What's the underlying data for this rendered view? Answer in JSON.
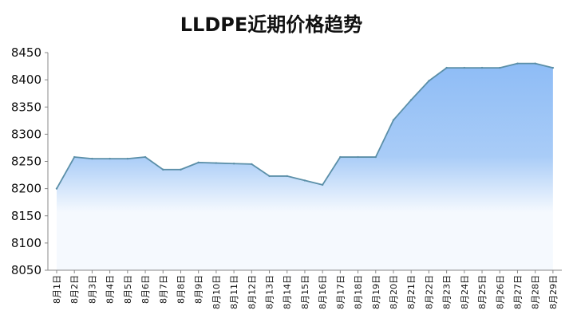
{
  "chart_data": {
    "type": "area",
    "title": "LLDPE近期价格趋势",
    "xlabel": "",
    "ylabel": "",
    "ylim": [
      8050,
      8450
    ],
    "yticks": [
      8050,
      8100,
      8150,
      8200,
      8250,
      8300,
      8350,
      8400,
      8450
    ],
    "grid": false,
    "legend": "none",
    "categories": [
      "8月1日",
      "8月2日",
      "8月3日",
      "8月4日",
      "8月5日",
      "8月6日",
      "8月7日",
      "8月8日",
      "8月9日",
      "8月10日",
      "8月11日",
      "8月12日",
      "8月13日",
      "8月14日",
      "8月15日",
      "8月16日",
      "8月17日",
      "8月18日",
      "8月19日",
      "8月20日",
      "8月21日",
      "8月22日",
      "8月23日",
      "8月24日",
      "8月25日",
      "8月26日",
      "8月27日",
      "8月28日",
      "8月29日"
    ],
    "series": [
      {
        "values": [
          8200,
          8258,
          8255,
          8255,
          8255,
          8258,
          8235,
          8235,
          8248,
          8247,
          8246,
          8245,
          8223,
          8223,
          8215,
          8207,
          8258,
          8258,
          8258,
          8326,
          8363,
          8398,
          8422,
          8422,
          8422,
          8422,
          8430,
          8430,
          8422
        ]
      }
    ],
    "colors": {
      "line": "#5b8fa8",
      "fill_top": "#8ebcf6",
      "fill_bottom": "#f5f9fe",
      "axis": "#888888"
    }
  }
}
